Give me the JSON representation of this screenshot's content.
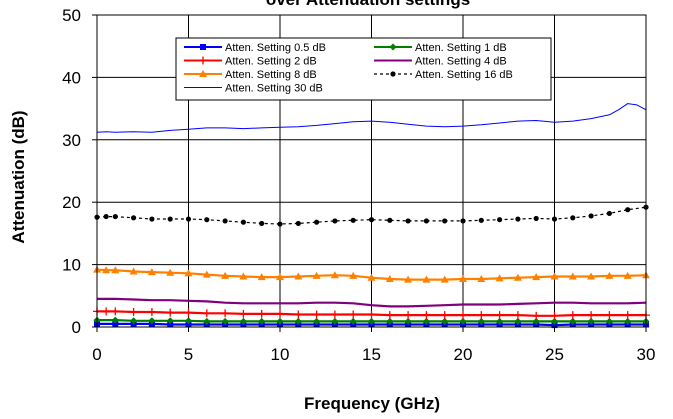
{
  "chart_data": {
    "type": "line",
    "title": "over Attenuation settings",
    "xlabel": "Frequency (GHz)",
    "ylabel": "Attenuation (dB)",
    "xlim": [
      0,
      30
    ],
    "ylim": [
      0,
      50
    ],
    "xticks": [
      "0",
      "5",
      "10",
      "15",
      "20",
      "25",
      "30"
    ],
    "yticks": [
      "0",
      "10",
      "20",
      "30",
      "40",
      "50"
    ],
    "grid": true,
    "legend_position": "top-center",
    "series": [
      {
        "name": "Atten. Setting 0.5 dB",
        "color": "#0000ff",
        "marker": "square",
        "x": [
          0,
          0.5,
          1,
          2,
          3,
          4,
          5,
          6,
          7,
          8,
          9,
          10,
          11,
          12,
          13,
          14,
          15,
          16,
          17,
          18,
          19,
          20,
          21,
          22,
          23,
          24,
          25,
          26,
          27,
          28,
          29,
          30
        ],
        "y": [
          0.5,
          0.5,
          0.5,
          0.5,
          0.5,
          0.4,
          0.4,
          0.4,
          0.4,
          0.4,
          0.4,
          0.4,
          0.4,
          0.4,
          0.4,
          0.4,
          0.4,
          0.4,
          0.4,
          0.4,
          0.4,
          0.4,
          0.4,
          0.4,
          0.4,
          0.4,
          0.3,
          0.4,
          0.4,
          0.4,
          0.4,
          0.4
        ]
      },
      {
        "name": "Atten. Setting 1 dB",
        "color": "#008000",
        "marker": "diamond",
        "x": [
          0,
          0.5,
          1,
          2,
          3,
          4,
          5,
          6,
          7,
          8,
          9,
          10,
          11,
          12,
          13,
          14,
          15,
          16,
          17,
          18,
          19,
          20,
          21,
          22,
          23,
          24,
          25,
          26,
          27,
          28,
          29,
          30
        ],
        "y": [
          1.1,
          1.1,
          1.1,
          1.0,
          1.0,
          1.0,
          1.0,
          0.9,
          0.9,
          0.9,
          0.9,
          0.9,
          0.9,
          0.9,
          0.9,
          0.9,
          0.9,
          0.9,
          0.9,
          0.9,
          0.9,
          0.9,
          0.9,
          0.9,
          0.9,
          0.9,
          0.9,
          0.9,
          0.9,
          0.9,
          0.9,
          0.9
        ]
      },
      {
        "name": "Atten. Setting 2 dB",
        "color": "#ff0000",
        "marker": "plus",
        "x": [
          0,
          0.5,
          1,
          2,
          3,
          4,
          5,
          6,
          7,
          8,
          9,
          10,
          11,
          12,
          13,
          14,
          15,
          16,
          17,
          18,
          19,
          20,
          21,
          22,
          23,
          24,
          25,
          26,
          27,
          28,
          29,
          30
        ],
        "y": [
          2.5,
          2.5,
          2.5,
          2.4,
          2.4,
          2.3,
          2.3,
          2.2,
          2.2,
          2.1,
          2.1,
          2.1,
          2.0,
          2.0,
          2.0,
          2.0,
          2.0,
          1.9,
          1.9,
          1.9,
          1.9,
          1.9,
          1.9,
          1.9,
          1.9,
          1.8,
          1.8,
          1.9,
          1.9,
          1.9,
          1.9,
          1.9
        ]
      },
      {
        "name": "Atten. Setting 4 dB",
        "color": "#800080",
        "marker": "none",
        "x": [
          0,
          1,
          2,
          3,
          4,
          5,
          6,
          7,
          8,
          9,
          10,
          11,
          12,
          13,
          14,
          15,
          16,
          17,
          18,
          19,
          20,
          21,
          22,
          23,
          24,
          25,
          26,
          27,
          28,
          29,
          30
        ],
        "y": [
          4.5,
          4.5,
          4.4,
          4.3,
          4.3,
          4.2,
          4.1,
          3.9,
          3.8,
          3.8,
          3.8,
          3.8,
          3.9,
          3.9,
          3.8,
          3.5,
          3.3,
          3.3,
          3.4,
          3.5,
          3.6,
          3.6,
          3.6,
          3.7,
          3.8,
          3.9,
          3.9,
          3.8,
          3.8,
          3.8,
          3.9
        ]
      },
      {
        "name": "Atten. Setting 8 dB",
        "color": "#ff8000",
        "marker": "triangle",
        "x": [
          0,
          0.5,
          1,
          2,
          3,
          4,
          5,
          6,
          7,
          8,
          9,
          10,
          11,
          12,
          13,
          14,
          15,
          16,
          17,
          18,
          19,
          20,
          21,
          22,
          23,
          24,
          25,
          26,
          27,
          28,
          29,
          30
        ],
        "y": [
          9.2,
          9.1,
          9.1,
          8.9,
          8.8,
          8.7,
          8.6,
          8.4,
          8.2,
          8.1,
          8.0,
          8.0,
          8.1,
          8.2,
          8.3,
          8.2,
          7.9,
          7.7,
          7.6,
          7.6,
          7.6,
          7.7,
          7.7,
          7.8,
          7.9,
          8.0,
          8.1,
          8.1,
          8.1,
          8.2,
          8.2,
          8.3
        ]
      },
      {
        "name": "Atten. Setting 16 dB",
        "color": "#000000",
        "marker": "circle",
        "dashed": true,
        "x": [
          0,
          0.5,
          1,
          2,
          3,
          4,
          5,
          6,
          7,
          8,
          9,
          10,
          11,
          12,
          13,
          14,
          15,
          16,
          17,
          18,
          19,
          20,
          21,
          22,
          23,
          24,
          25,
          26,
          27,
          28,
          29,
          30
        ],
        "y": [
          17.6,
          17.7,
          17.7,
          17.5,
          17.3,
          17.3,
          17.3,
          17.2,
          17.0,
          16.8,
          16.6,
          16.5,
          16.6,
          16.8,
          17.0,
          17.1,
          17.2,
          17.1,
          17.0,
          17.0,
          17.0,
          17.0,
          17.1,
          17.2,
          17.3,
          17.4,
          17.3,
          17.5,
          17.8,
          18.2,
          18.8,
          19.2
        ]
      },
      {
        "name": "Atten. Setting 30 dB",
        "color": "#0000ff",
        "marker": "none",
        "thin": true,
        "x": [
          0,
          0.5,
          1,
          2,
          3,
          4,
          5,
          6,
          7,
          8,
          9,
          10,
          11,
          12,
          13,
          14,
          15,
          16,
          17,
          18,
          19,
          20,
          21,
          22,
          23,
          24,
          25,
          26,
          27,
          28,
          28.5,
          29,
          29.5,
          30
        ],
        "y": [
          31.2,
          31.3,
          31.2,
          31.3,
          31.2,
          31.5,
          31.7,
          31.9,
          31.9,
          31.8,
          31.9,
          32.0,
          32.1,
          32.3,
          32.6,
          32.9,
          33.0,
          32.8,
          32.5,
          32.2,
          32.1,
          32.2,
          32.4,
          32.7,
          33.0,
          33.1,
          32.8,
          33.0,
          33.4,
          34.0,
          34.8,
          35.8,
          35.6,
          34.8
        ]
      }
    ]
  }
}
